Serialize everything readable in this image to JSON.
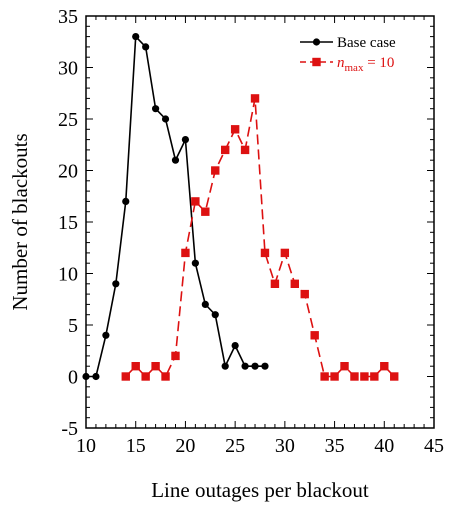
{
  "chart_data": {
    "type": "line",
    "xlabel": "Line outages per blackout",
    "ylabel": "Number of blackouts",
    "xlim": [
      10,
      45
    ],
    "ylim": [
      -5,
      35
    ],
    "xticks": [
      10,
      15,
      20,
      25,
      30,
      35,
      40,
      45
    ],
    "yticks": [
      -5,
      0,
      5,
      10,
      15,
      20,
      25,
      30,
      35
    ],
    "grid": false,
    "legend_position": "top-right",
    "series": [
      {
        "name": "Base case",
        "color": "#000000",
        "line_style": "solid",
        "marker": "circle",
        "x": [
          10,
          11,
          12,
          13,
          14,
          15,
          16,
          17,
          18,
          19,
          20,
          21,
          22,
          23,
          24,
          25,
          26,
          27,
          28
        ],
        "y": [
          0,
          0,
          4,
          9,
          17,
          33,
          32,
          26,
          25,
          21,
          23,
          11,
          7,
          6,
          1,
          3,
          1,
          1,
          1
        ]
      },
      {
        "name_prefix": "n",
        "name_subscript": "max",
        "name_suffix": " = 10",
        "color": "#dd1111",
        "line_style": "dashed",
        "marker": "square",
        "x": [
          14,
          15,
          16,
          17,
          18,
          19,
          20,
          21,
          22,
          23,
          24,
          25,
          26,
          27,
          28,
          29,
          30,
          31,
          32,
          33,
          34,
          35,
          36,
          37,
          38,
          39,
          40,
          41
        ],
        "y": [
          0,
          1,
          0,
          1,
          0,
          2,
          12,
          17,
          16,
          20,
          22,
          24,
          22,
          27,
          12,
          9,
          12,
          9,
          8,
          4,
          0,
          0,
          1,
          0,
          0,
          0,
          1,
          0
        ]
      }
    ]
  }
}
